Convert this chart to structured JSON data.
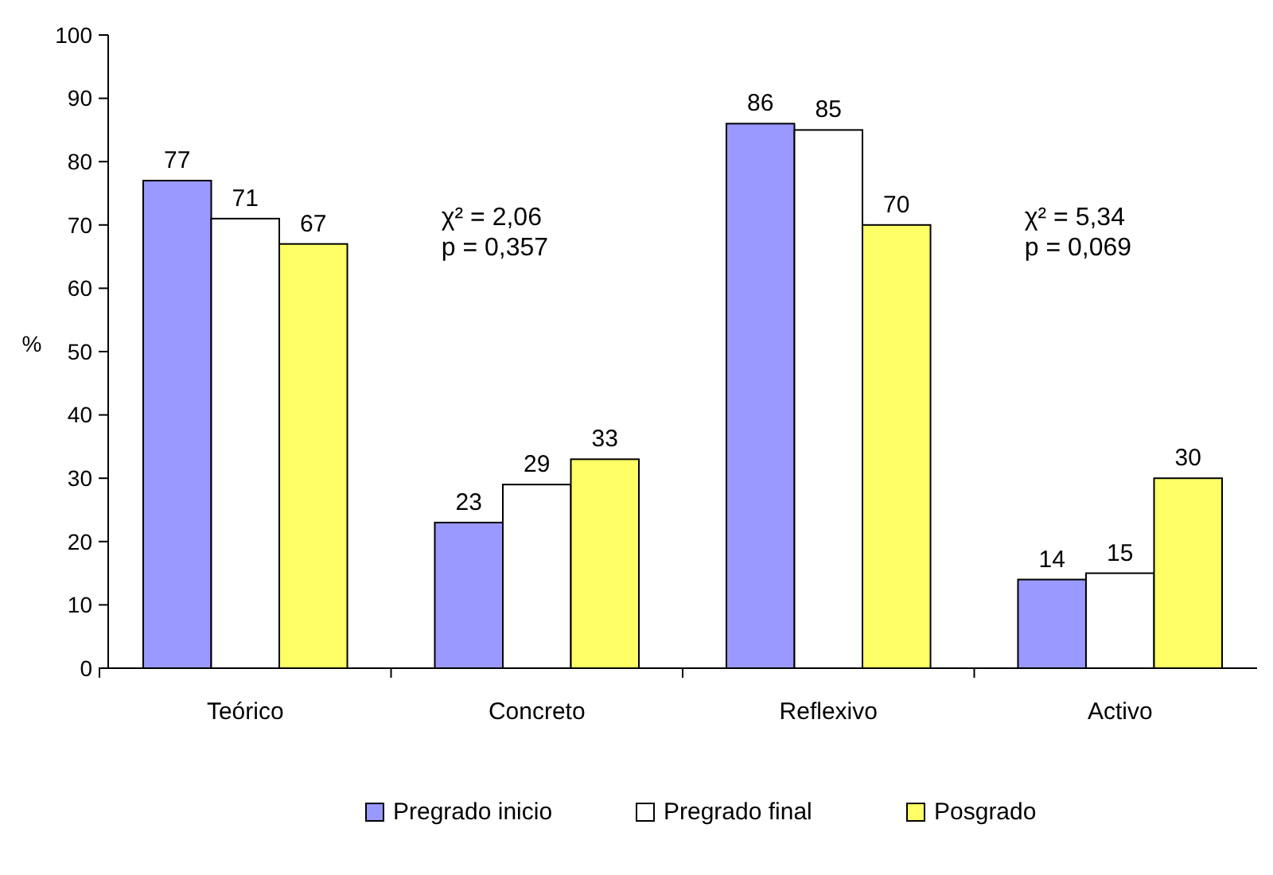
{
  "chart_data": {
    "type": "bar",
    "ylabel": "%",
    "categories": [
      "Teórico",
      "Concreto",
      "Reflexivo",
      "Activo"
    ],
    "series": [
      {
        "name": "Pregrado inicio",
        "color": "#9999ff",
        "values": [
          77,
          23,
          86,
          14
        ]
      },
      {
        "name": "Pregrado final",
        "color": "#ffffff",
        "values": [
          71,
          29,
          85,
          15
        ]
      },
      {
        "name": "Posgrado",
        "color": "#ffff66",
        "values": [
          67,
          33,
          70,
          30
        ]
      }
    ],
    "ylim": [
      0,
      100
    ],
    "yticks": [
      0,
      10,
      20,
      30,
      40,
      50,
      60,
      70,
      80,
      90,
      100
    ],
    "data_labels": true,
    "legend": "bottom",
    "annotations": [
      "χ² = 2,06\np = 0,357",
      "χ² = 5,34\np = 0,069"
    ]
  }
}
